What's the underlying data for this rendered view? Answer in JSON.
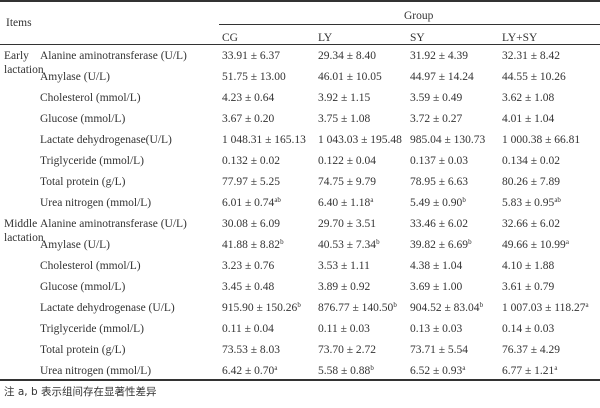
{
  "header": {
    "items": "Items",
    "group": "Group",
    "columns": [
      "CG",
      "LY",
      "SY",
      "LY+SY"
    ]
  },
  "sections": [
    {
      "label_lines": [
        "Early",
        "lactation"
      ],
      "rows": [
        {
          "label": "Alanine aminotransferase (U/L)",
          "cells": [
            {
              "v": "33.91 ± 6.37",
              "s": ""
            },
            {
              "v": "29.34 ± 8.40",
              "s": ""
            },
            {
              "v": "31.92 ± 4.39",
              "s": ""
            },
            {
              "v": "32.31 ± 8.42",
              "s": ""
            }
          ]
        },
        {
          "label": "Amylase (U/L)",
          "cells": [
            {
              "v": "51.75 ± 13.00",
              "s": ""
            },
            {
              "v": "46.01 ± 10.05",
              "s": ""
            },
            {
              "v": "44.97 ± 14.24",
              "s": ""
            },
            {
              "v": "44.55 ± 10.26",
              "s": ""
            }
          ]
        },
        {
          "label": "Cholesterol (mmol/L)",
          "cells": [
            {
              "v": "4.23 ± 0.64",
              "s": ""
            },
            {
              "v": "3.92 ± 1.15",
              "s": ""
            },
            {
              "v": "3.59 ± 0.49",
              "s": ""
            },
            {
              "v": "3.62 ± 1.08",
              "s": ""
            }
          ]
        },
        {
          "label": "Glucose (mmol/L)",
          "cells": [
            {
              "v": "3.67 ± 0.20",
              "s": ""
            },
            {
              "v": "3.75 ± 1.08",
              "s": ""
            },
            {
              "v": "3.72 ± 0.27",
              "s": ""
            },
            {
              "v": "4.01 ± 1.04",
              "s": ""
            }
          ]
        },
        {
          "label": "Lactate dehydrogenase(U/L)",
          "cells": [
            {
              "v": "1 048.31 ± 165.13",
              "s": ""
            },
            {
              "v": "1 043.03 ± 195.48",
              "s": ""
            },
            {
              "v": "985.04 ± 130.73",
              "s": ""
            },
            {
              "v": "1 000.38 ± 66.81",
              "s": ""
            }
          ]
        },
        {
          "label": "Triglyceride (mmol/L)",
          "cells": [
            {
              "v": "0.132 ± 0.02",
              "s": ""
            },
            {
              "v": "0.122 ± 0.04",
              "s": ""
            },
            {
              "v": "0.137 ± 0.03",
              "s": ""
            },
            {
              "v": "0.134 ± 0.02",
              "s": ""
            }
          ]
        },
        {
          "label": "Total protein (g/L)",
          "cells": [
            {
              "v": "77.97 ± 5.25",
              "s": ""
            },
            {
              "v": "74.75 ± 9.79",
              "s": ""
            },
            {
              "v": "78.95 ± 6.63",
              "s": ""
            },
            {
              "v": "80.26 ± 7.89",
              "s": ""
            }
          ]
        },
        {
          "label": "Urea nitrogen (mmol/L)",
          "cells": [
            {
              "v": "6.01 ± 0.74",
              "s": "ab"
            },
            {
              "v": "6.40 ± 1.18",
              "s": "a"
            },
            {
              "v": "5.49 ± 0.90",
              "s": "b"
            },
            {
              "v": "5.83 ± 0.95",
              "s": "ab"
            }
          ]
        }
      ]
    },
    {
      "label_lines": [
        "Middle",
        "lactation"
      ],
      "rows": [
        {
          "label": "Alanine aminotransferase (U/L)",
          "cells": [
            {
              "v": "30.08 ± 6.09",
              "s": ""
            },
            {
              "v": "29.70 ± 3.51",
              "s": ""
            },
            {
              "v": "33.46 ± 6.02",
              "s": ""
            },
            {
              "v": "32.66 ± 6.02",
              "s": ""
            }
          ]
        },
        {
          "label": "Amylase (U/L)",
          "cells": [
            {
              "v": "41.88 ± 8.82",
              "s": "b"
            },
            {
              "v": "40.53 ± 7.34",
              "s": "b"
            },
            {
              "v": "39.82 ± 6.69",
              "s": "b"
            },
            {
              "v": "49.66 ± 10.99",
              "s": "a"
            }
          ]
        },
        {
          "label": "Cholesterol (mmol/L)",
          "cells": [
            {
              "v": "3.23 ± 0.76",
              "s": ""
            },
            {
              "v": "3.53 ± 1.11",
              "s": ""
            },
            {
              "v": "4.38 ± 1.04",
              "s": ""
            },
            {
              "v": "4.10 ± 1.88",
              "s": ""
            }
          ]
        },
        {
          "label": "Glucose (mmol/L)",
          "cells": [
            {
              "v": "3.45 ± 0.48",
              "s": ""
            },
            {
              "v": "3.89 ± 0.92",
              "s": ""
            },
            {
              "v": "3.69 ± 1.00",
              "s": ""
            },
            {
              "v": "3.61 ± 0.79",
              "s": ""
            }
          ]
        },
        {
          "label": "Lactate dehydrogenase (U/L)",
          "cells": [
            {
              "v": "915.90 ± 150.26",
              "s": "b"
            },
            {
              "v": "876.77 ± 140.50",
              "s": "b"
            },
            {
              "v": "904.52 ± 83.04",
              "s": "b"
            },
            {
              "v": "1 007.03 ± 118.27",
              "s": "a"
            }
          ]
        },
        {
          "label": "Triglyceride (mmol/L)",
          "cells": [
            {
              "v": "0.11 ± 0.04",
              "s": ""
            },
            {
              "v": "0.11 ± 0.03",
              "s": ""
            },
            {
              "v": "0.13 ± 0.03",
              "s": ""
            },
            {
              "v": "0.14 ± 0.03",
              "s": ""
            }
          ]
        },
        {
          "label": "Total protein (g/L)",
          "cells": [
            {
              "v": "73.53 ± 8.03",
              "s": ""
            },
            {
              "v": "73.70 ± 2.72",
              "s": ""
            },
            {
              "v": "73.71 ± 5.54",
              "s": ""
            },
            {
              "v": "76.37 ± 4.29",
              "s": ""
            }
          ]
        },
        {
          "label": "Urea nitrogen (mmol/L)",
          "cells": [
            {
              "v": "6.42 ± 0.70",
              "s": "a"
            },
            {
              "v": "5.58 ± 0.88",
              "s": "b"
            },
            {
              "v": "6.52 ± 0.93",
              "s": "a"
            },
            {
              "v": "6.77 ± 1.21",
              "s": "a"
            }
          ]
        }
      ]
    }
  ],
  "note": "注 a, b 表示组间存在显著性差异"
}
